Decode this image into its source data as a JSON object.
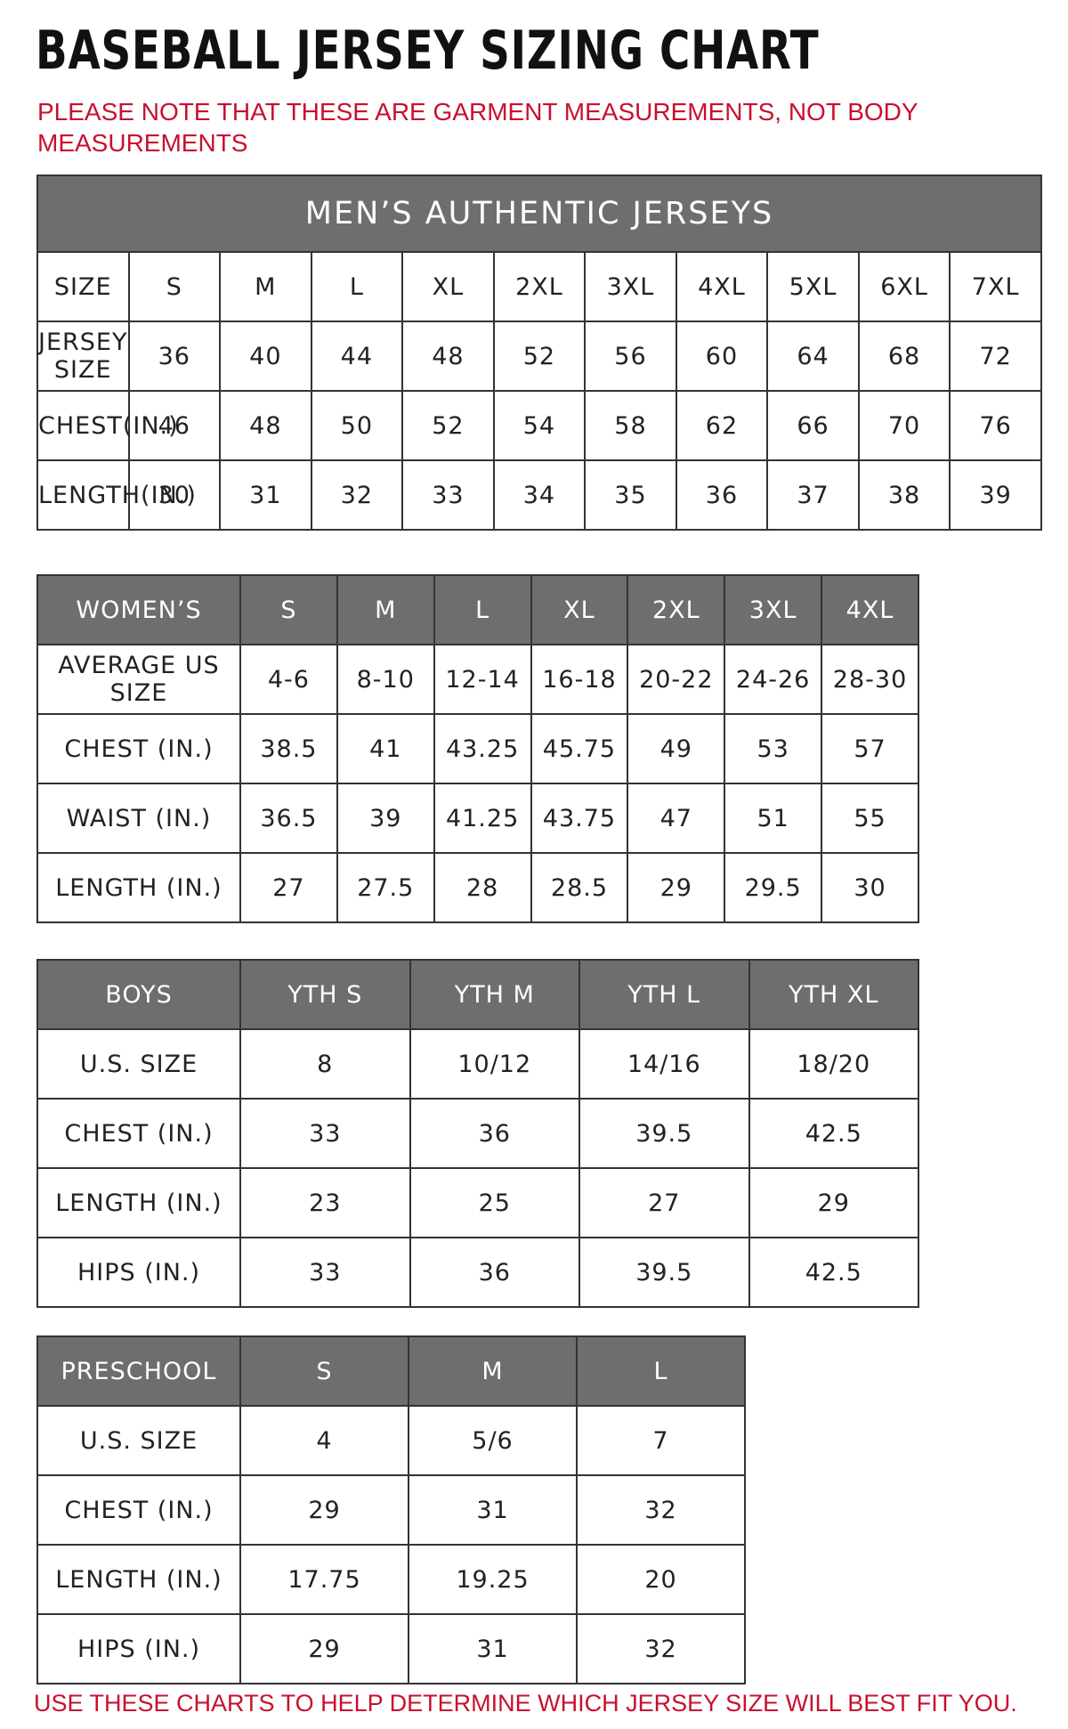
{
  "header": {
    "title": "BASEBALL JERSEY SIZING CHART",
    "note": "PLEASE NOTE THAT THESE ARE GARMENT MEASUREMENTS, NOT BODY MEASUREMENTS"
  },
  "tables": [
    {
      "title": "MEN’S AUTHENTIC JERSEYS",
      "header": [
        "SIZE",
        "S",
        "M",
        "L",
        "XL",
        "2XL",
        "3XL",
        "4XL",
        "5XL",
        "6XL",
        "7XL"
      ],
      "rows": [
        [
          "JERSEY SIZE",
          "36",
          "40",
          "44",
          "48",
          "52",
          "56",
          "60",
          "64",
          "68",
          "72"
        ],
        [
          "CHEST(IN.)",
          "46",
          "48",
          "50",
          "52",
          "54",
          "58",
          "62",
          "66",
          "70",
          "76"
        ],
        [
          "LENGTH(IN.)",
          "30",
          "31",
          "32",
          "33",
          "34",
          "35",
          "36",
          "37",
          "38",
          "39"
        ]
      ]
    },
    {
      "header": [
        "WOMEN’S",
        "S",
        "M",
        "L",
        "XL",
        "2XL",
        "3XL",
        "4XL"
      ],
      "rows": [
        [
          "AVERAGE US SIZE",
          "4-6",
          "8-10",
          "12-14",
          "16-18",
          "20-22",
          "24-26",
          "28-30"
        ],
        [
          "CHEST (IN.)",
          "38.5",
          "41",
          "43.25",
          "45.75",
          "49",
          "53",
          "57"
        ],
        [
          "WAIST (IN.)",
          "36.5",
          "39",
          "41.25",
          "43.75",
          "47",
          "51",
          "55"
        ],
        [
          "LENGTH (IN.)",
          "27",
          "27.5",
          "28",
          "28.5",
          "29",
          "29.5",
          "30"
        ]
      ]
    },
    {
      "header": [
        "BOYS",
        "YTH S",
        "YTH M",
        "YTH L",
        "YTH XL"
      ],
      "rows": [
        [
          "U.S. SIZE",
          "8",
          "10/12",
          "14/16",
          "18/20"
        ],
        [
          "CHEST (IN.)",
          "33",
          "36",
          "39.5",
          "42.5"
        ],
        [
          "LENGTH (IN.)",
          "23",
          "25",
          "27",
          "29"
        ],
        [
          "HIPS (IN.)",
          "33",
          "36",
          "39.5",
          "42.5"
        ]
      ]
    },
    {
      "header": [
        "PRESCHOOL",
        "S",
        "M",
        "L"
      ],
      "rows": [
        [
          "U.S. SIZE",
          "4",
          "5/6",
          "7"
        ],
        [
          "CHEST (IN.)",
          "29",
          "31",
          "32"
        ],
        [
          "LENGTH (IN.)",
          "17.75",
          "19.25",
          "20"
        ],
        [
          "HIPS (IN.)",
          "29",
          "31",
          "32"
        ]
      ]
    }
  ],
  "footer": "USE THESE CHARTS TO HELP DETERMINE WHICH JERSEY SIZE WILL BEST FIT YOU."
}
